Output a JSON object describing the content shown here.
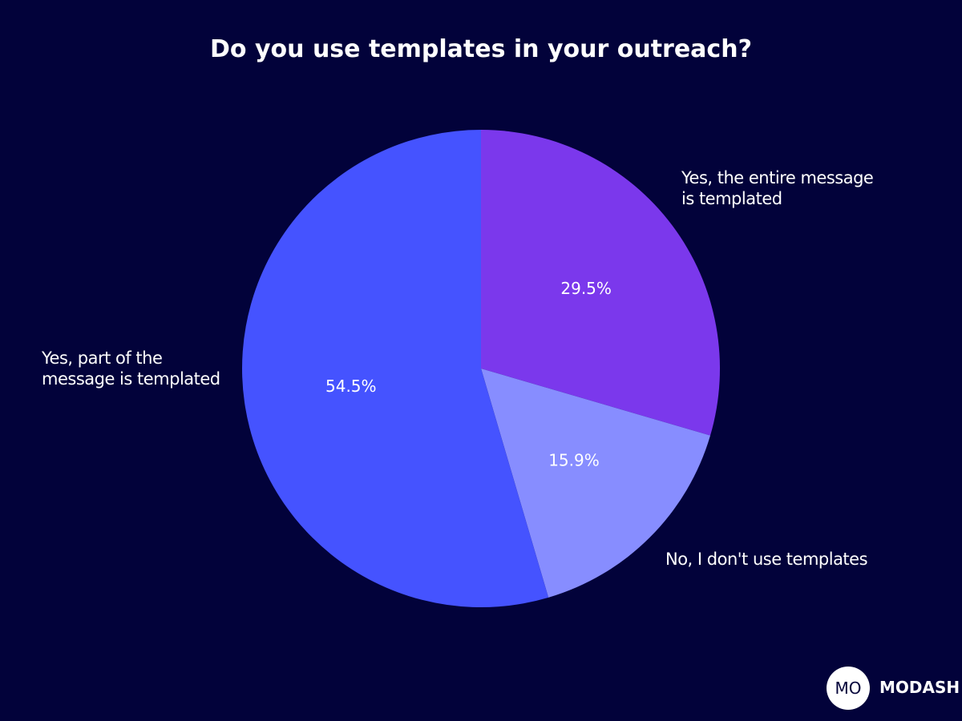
{
  "chart_data": {
    "type": "pie",
    "title": "Do you use templates in your outreach?",
    "categories": [
      "Yes, the entire message is templated",
      "No, I don't use templates",
      "Yes, part of the message is templated"
    ],
    "values": [
      29.5,
      15.9,
      54.5
    ],
    "value_labels": [
      "29.5%",
      "15.9%",
      "54.5%"
    ],
    "colors": [
      "#7b38ec",
      "#878dff",
      "#4553ff"
    ]
  },
  "logo": {
    "mark": "MO",
    "name": "MODASH"
  }
}
